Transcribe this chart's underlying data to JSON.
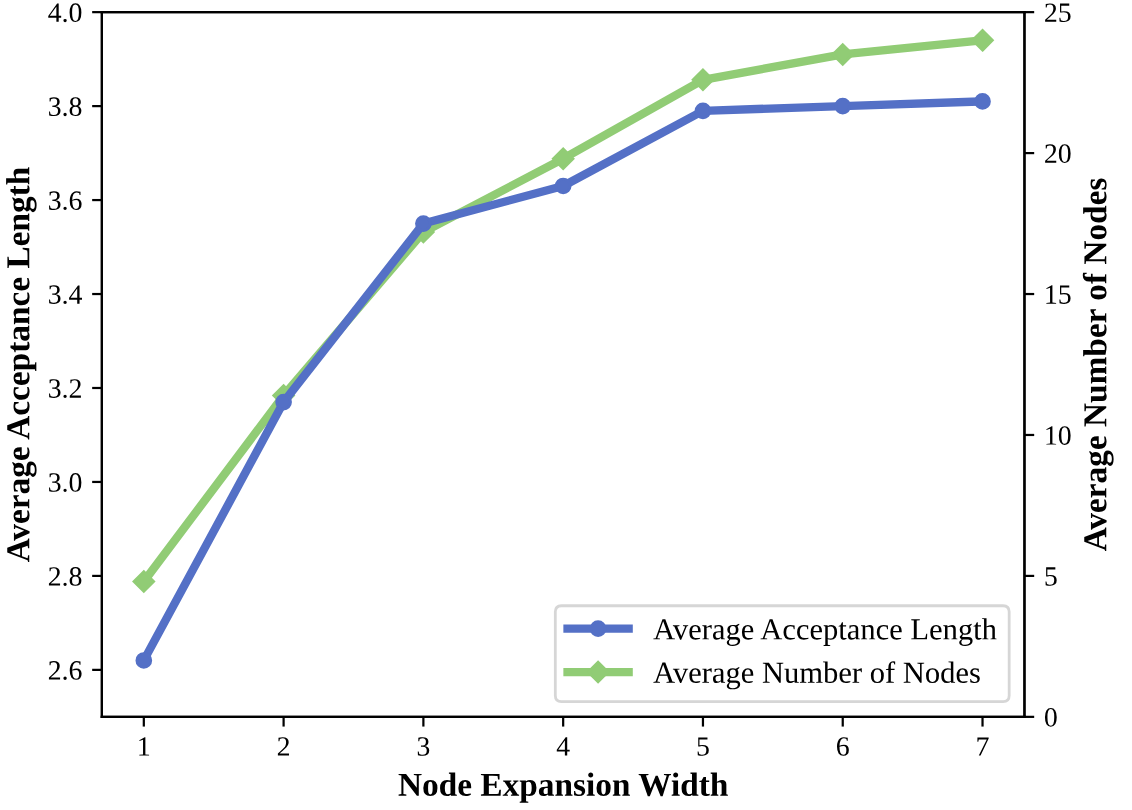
{
  "chart_data": {
    "type": "line",
    "xlabel": "Node Expansion Width",
    "ylabel": "Average Acceptance Length",
    "y2label": "Average Number of Nodes",
    "x": [
      1,
      2,
      3,
      4,
      5,
      6,
      7
    ],
    "series": [
      {
        "name": "Average Acceptance Length",
        "color": "#5470c6",
        "marker": "circle",
        "values": [
          2.62,
          3.17,
          3.55,
          3.63,
          3.79,
          3.8,
          3.81
        ]
      },
      {
        "name": "Average Number of Nodes",
        "color": "#91cc75",
        "marker": "diamond",
        "axis": "y2",
        "values": [
          4.8,
          11.4,
          17.2,
          19.8,
          22.6,
          23.5,
          24.0
        ]
      }
    ],
    "xlim": [
      0.7,
      7.3
    ],
    "xticks": [
      1,
      2,
      3,
      4,
      5,
      6,
      7
    ],
    "ylim": [
      2.5,
      4.0
    ],
    "yticks": [
      2.6,
      2.8,
      {
        "value": 3,
        "label": "3.0"
      },
      3.2,
      3.4,
      3.6,
      3.8,
      {
        "value": 4,
        "label": "4.0"
      }
    ],
    "y2lim": [
      0,
      25
    ],
    "y2ticks": [
      0,
      5,
      10,
      15,
      20,
      25
    ],
    "grid": false,
    "legend": "bottom right",
    "line_style": "solid"
  }
}
